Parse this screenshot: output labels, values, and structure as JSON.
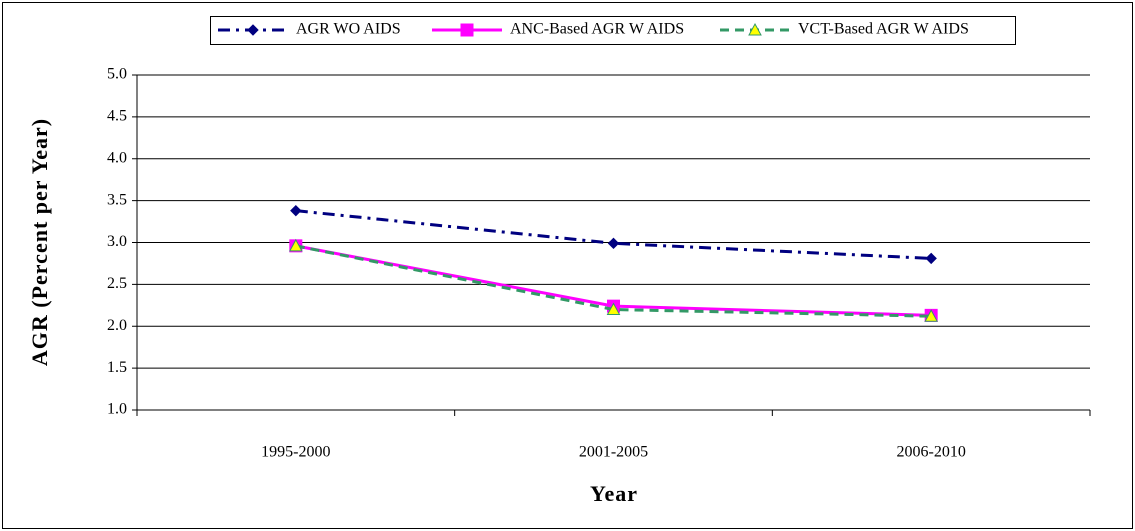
{
  "chart_data": {
    "type": "line",
    "categories": [
      "1995-2000",
      "2001-2005",
      "2006-2010"
    ],
    "series": [
      {
        "name": "AGR WO AIDS",
        "color": "#000080",
        "marker": "diamond",
        "line_style": "dash-dot",
        "values": [
          3.38,
          2.99,
          2.81
        ]
      },
      {
        "name": "ANC-Based AGR W AIDS",
        "color": "#ff00ff",
        "marker": "square",
        "line_style": "solid",
        "values": [
          2.96,
          2.24,
          2.13
        ]
      },
      {
        "name": "VCT-Based AGR W AIDS",
        "color": "#339966",
        "marker": "triangle",
        "line_style": "dashed",
        "values": [
          2.96,
          2.2,
          2.12
        ]
      }
    ],
    "x_label": "Year",
    "y_label": "AGR (Percent per Year)",
    "ylim": [
      1,
      5
    ],
    "yticks": [
      {
        "value": 1,
        "label": "1.0"
      },
      1.5,
      {
        "value": 2,
        "label": "2.0"
      },
      2.5,
      {
        "value": 3,
        "label": "3.0"
      },
      3.5,
      {
        "value": 4,
        "label": "4.0"
      },
      4.5,
      {
        "value": 5,
        "label": "5.0"
      }
    ],
    "grid": true,
    "legend": "top"
  }
}
